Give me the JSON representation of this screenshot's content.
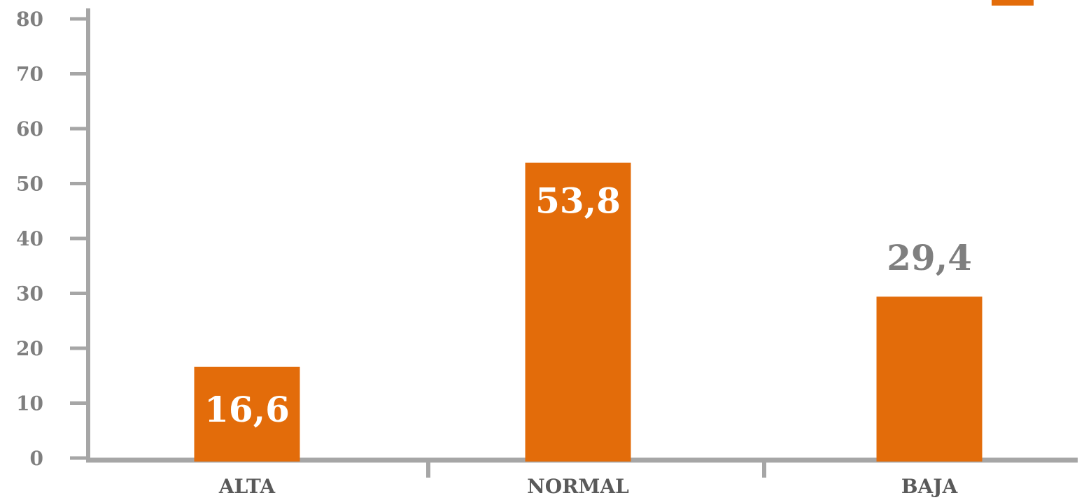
{
  "chart_data": {
    "type": "bar",
    "categories": [
      "ALTA",
      "NORMAL",
      "BAJA"
    ],
    "values": [
      16.6,
      53.8,
      29.4
    ],
    "value_labels": [
      "16,6",
      "53,8",
      "29,4"
    ],
    "value_label_placement": [
      "inside",
      "inside",
      "above"
    ],
    "y_ticks": [
      "0",
      "10",
      "20",
      "30",
      "40",
      "50",
      "60",
      "70",
      "80"
    ],
    "ylim": [
      0,
      80
    ],
    "title": "",
    "xlabel": "",
    "ylabel": "",
    "grid": false,
    "legend": {
      "placement": "top-right",
      "entries": [
        ""
      ]
    }
  },
  "colors": {
    "bar": "#e36c0a",
    "axis": "#a6a6a6",
    "tick_label": "#7f7f7f",
    "category_label": "#595959",
    "inside_label": "#ffffff",
    "outside_label": "#7f7f7f"
  }
}
